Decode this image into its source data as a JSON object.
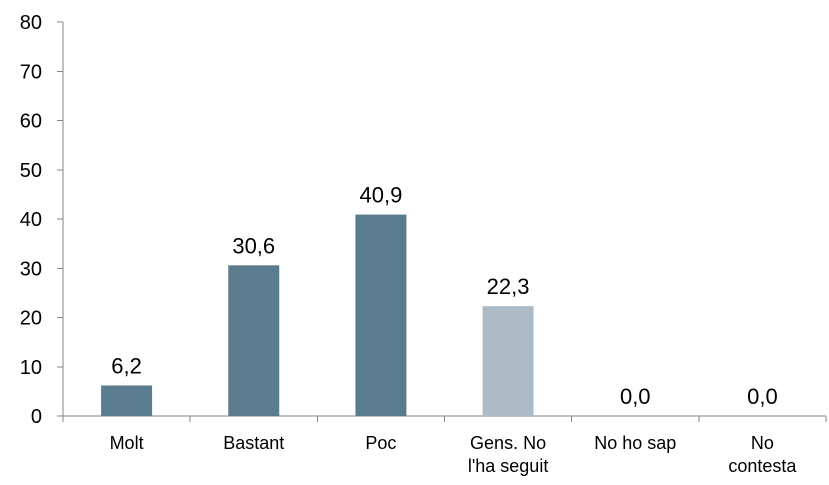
{
  "chart_data": {
    "type": "bar",
    "categories": [
      [
        "Molt"
      ],
      [
        "Bastant"
      ],
      [
        "Poc"
      ],
      [
        "Gens. No",
        "l'ha seguit"
      ],
      [
        "No ho sap"
      ],
      [
        "No",
        "contesta"
      ]
    ],
    "values": [
      6.2,
      30.6,
      40.9,
      22.3,
      0.0,
      0.0
    ],
    "data_labels": [
      "6,2",
      "30,6",
      "40,9",
      "22,3",
      "0,0",
      "0,0"
    ],
    "bar_colors": [
      "#5b7b8e",
      "#5b7b8e",
      "#5b7b8e",
      "#acbbc6",
      "#5b7b8e",
      "#5b7b8e"
    ],
    "ylim": [
      0,
      80
    ],
    "yticks": [
      0,
      10,
      20,
      30,
      40,
      50,
      60,
      70,
      80
    ],
    "title": "",
    "xlabel": "",
    "ylabel": "",
    "grid": false,
    "legend": "none"
  }
}
